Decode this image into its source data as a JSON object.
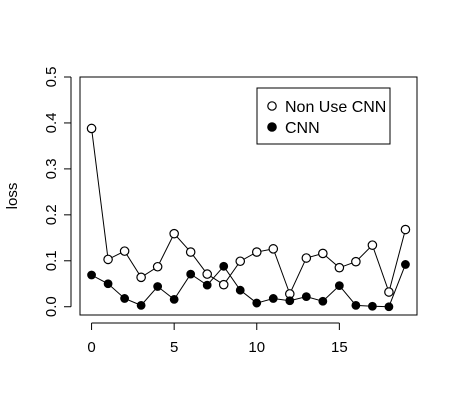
{
  "chart_data": {
    "type": "line",
    "title": "",
    "xlabel": "",
    "ylabel": "loss",
    "xlim": [
      -0.7,
      19.7
    ],
    "ylim": [
      -0.018,
      0.5
    ],
    "x_ticks": [
      0,
      5,
      10,
      15
    ],
    "x_tick_labels": [
      "0",
      "5",
      "10",
      "15"
    ],
    "y_ticks": [
      0.0,
      0.1,
      0.2,
      0.3,
      0.4,
      0.5
    ],
    "y_tick_labels": [
      "0.0",
      "0.1",
      "0.2",
      "0.3",
      "0.4",
      "0.5"
    ],
    "grid": false,
    "legend_position": "top-right",
    "x": [
      0,
      1,
      2,
      3,
      4,
      5,
      6,
      7,
      8,
      9,
      10,
      11,
      12,
      13,
      14,
      15,
      16,
      17,
      18,
      19
    ],
    "series": [
      {
        "name": "Non Use CNN",
        "marker": "open-circle",
        "values": [
          0.388,
          0.103,
          0.121,
          0.064,
          0.087,
          0.159,
          0.119,
          0.071,
          0.048,
          0.099,
          0.119,
          0.126,
          0.028,
          0.106,
          0.116,
          0.085,
          0.098,
          0.134,
          0.032,
          0.168
        ]
      },
      {
        "name": "CNN",
        "marker": "filled-circle",
        "values": [
          0.069,
          0.05,
          0.018,
          0.003,
          0.044,
          0.016,
          0.071,
          0.047,
          0.088,
          0.036,
          0.008,
          0.018,
          0.013,
          0.022,
          0.012,
          0.046,
          0.003,
          0.001,
          0.0,
          0.092
        ]
      }
    ],
    "colors": {
      "line": "#000000",
      "open_fill": "#ffffff",
      "filled_fill": "#000000"
    }
  }
}
